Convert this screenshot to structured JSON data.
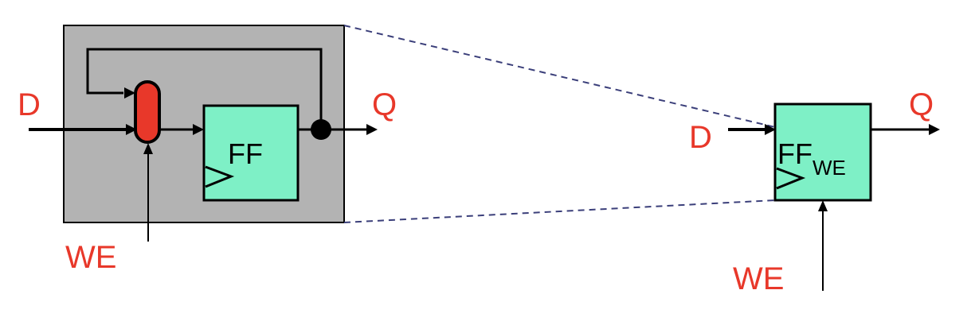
{
  "labels": {
    "left_d": "D",
    "left_q": "Q",
    "left_we": "WE",
    "left_ff": "FF",
    "right_d": "D",
    "right_q": "Q",
    "right_we": "WE",
    "right_ff": "FF",
    "right_ff_sub": "WE"
  },
  "colors": {
    "text_red": "#e8382a",
    "ff_fill": "#7ef0c6",
    "mux_fill": "#e8382a",
    "enclosure_fill": "#b3b3b3",
    "dashed_line": "#3b3f7a",
    "stroke": "#000000"
  }
}
